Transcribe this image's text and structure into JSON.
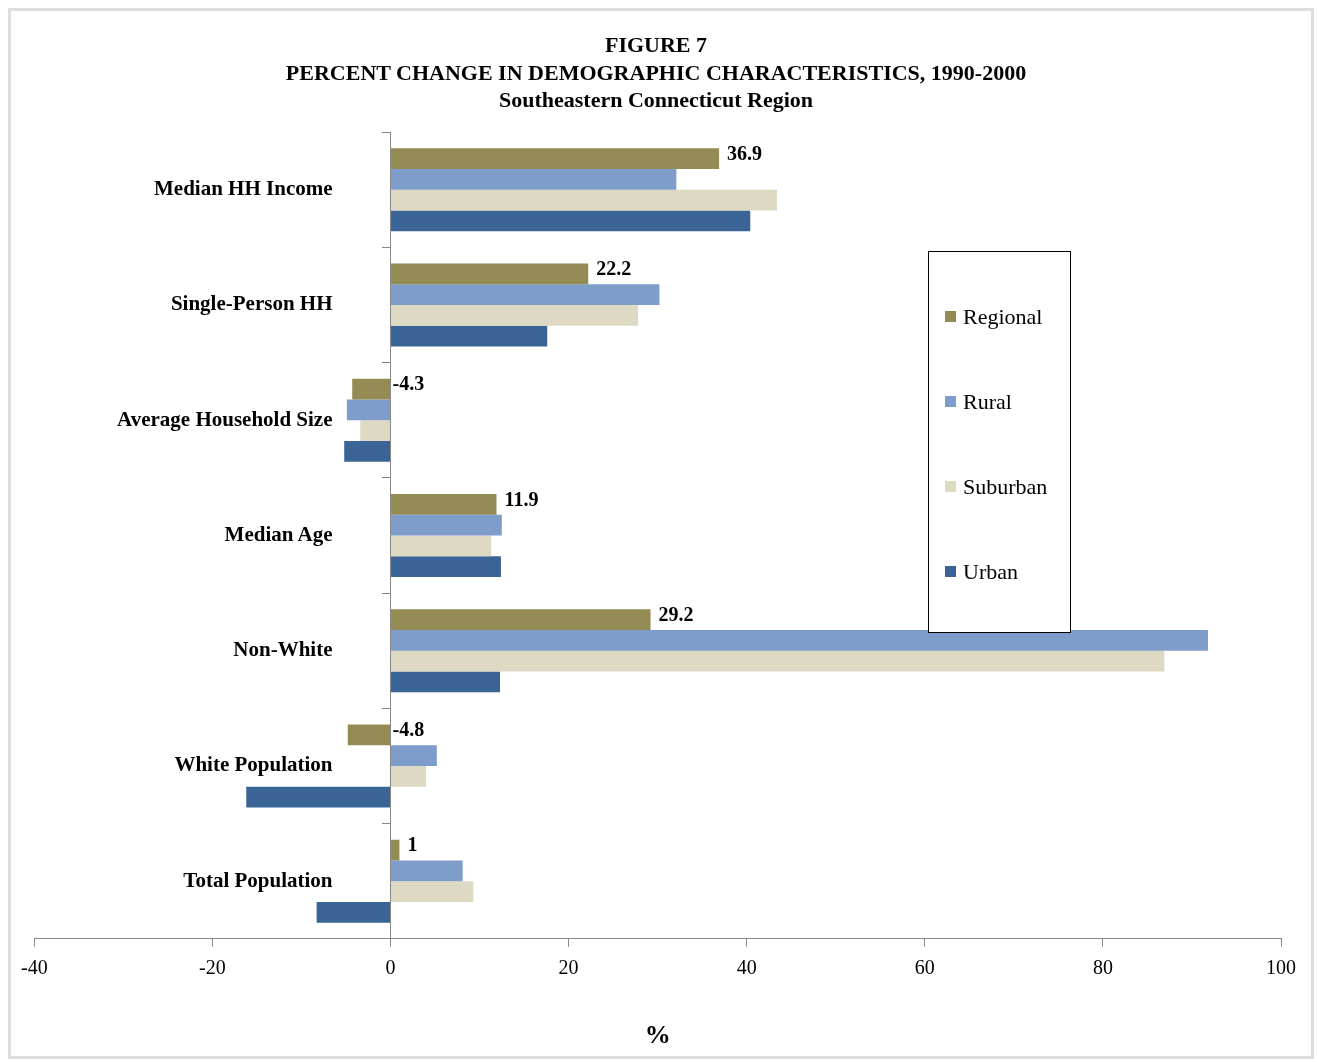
{
  "chart_data": {
    "type": "bar",
    "orientation": "horizontal",
    "title": "FIGURE 7",
    "subtitle": "PERCENT CHANGE IN DEMOGRAPHIC CHARACTERISTICS, 1990-2000\nSoutheastern Connecticut Region",
    "xlabel": "%",
    "categories": [
      "Median HH Income",
      "Single-Person HH",
      "Average Household Size",
      "Median Age",
      "Non-White",
      "White Population",
      "Total Population"
    ],
    "series": [
      {
        "name": "Regional",
        "color": "#948b54",
        "values": [
          36.9,
          22.2,
          -4.3,
          11.9,
          29.2,
          -4.8,
          1
        ],
        "value_labels": [
          "36.9",
          "22.2",
          "-4.3",
          "11.9",
          "29.2",
          "-4.8",
          "1"
        ]
      },
      {
        "name": "Rural",
        "color": "#7f9dcb",
        "values": [
          32.1,
          30.2,
          -4.9,
          12.5,
          91.8,
          5.2,
          8.1
        ]
      },
      {
        "name": "Suburban",
        "color": "#ddd9c3",
        "values": [
          43.4,
          27.8,
          -3.4,
          11.3,
          86.9,
          4.0,
          9.3
        ]
      },
      {
        "name": "Urban",
        "color": "#3b6496",
        "values": [
          40.4,
          17.6,
          -5.2,
          12.4,
          12.3,
          -16.2,
          -8.3
        ]
      }
    ],
    "xlim": [
      -40,
      100
    ],
    "xticks": [
      -40,
      -20,
      0,
      20,
      40,
      60,
      80,
      100
    ],
    "legend": "right"
  }
}
